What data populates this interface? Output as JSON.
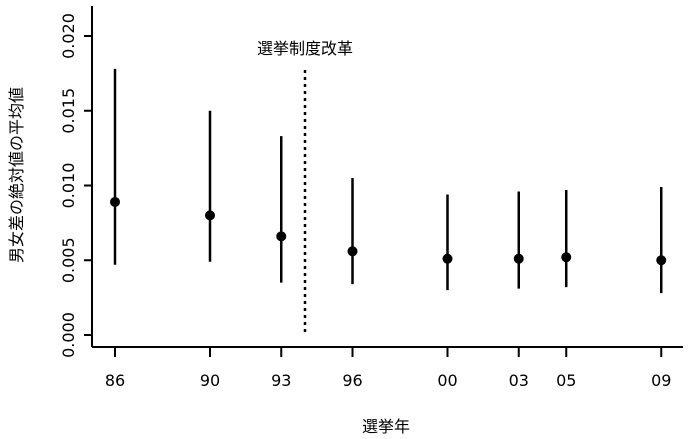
{
  "chart_data": {
    "type": "scatter",
    "xlabel": "選挙年",
    "ylabel": "男女差の絶対値の平均値",
    "ylim": [
      0.0,
      0.02
    ],
    "y_ticks": [
      "0.000",
      "0.005",
      "0.010",
      "0.015",
      "0.020"
    ],
    "x_ticks": [
      {
        "year": 1986,
        "label": "86"
      },
      {
        "year": 1990,
        "label": "90"
      },
      {
        "year": 1993,
        "label": "93"
      },
      {
        "year": 1996,
        "label": "96"
      },
      {
        "year": 2000,
        "label": "00"
      },
      {
        "year": 2003,
        "label": "03"
      },
      {
        "year": 2005,
        "label": "05"
      },
      {
        "year": 2009,
        "label": "09"
      }
    ],
    "points": [
      {
        "year": 1986,
        "mean": 0.0089,
        "lower": 0.0047,
        "upper": 0.0178
      },
      {
        "year": 1990,
        "mean": 0.008,
        "lower": 0.0049,
        "upper": 0.015
      },
      {
        "year": 1993,
        "mean": 0.0066,
        "lower": 0.0035,
        "upper": 0.0133
      },
      {
        "year": 1996,
        "mean": 0.0056,
        "lower": 0.0034,
        "upper": 0.0105
      },
      {
        "year": 2000,
        "mean": 0.0051,
        "lower": 0.003,
        "upper": 0.0094
      },
      {
        "year": 2003,
        "mean": 0.0051,
        "lower": 0.0031,
        "upper": 0.0096
      },
      {
        "year": 2005,
        "mean": 0.0052,
        "lower": 0.0032,
        "upper": 0.0097
      },
      {
        "year": 2009,
        "mean": 0.005,
        "lower": 0.0028,
        "upper": 0.0099
      }
    ],
    "reference_line": {
      "year": 1994,
      "label": "選挙制度改革",
      "style": "dotted"
    },
    "grid": false,
    "legend": "none"
  }
}
